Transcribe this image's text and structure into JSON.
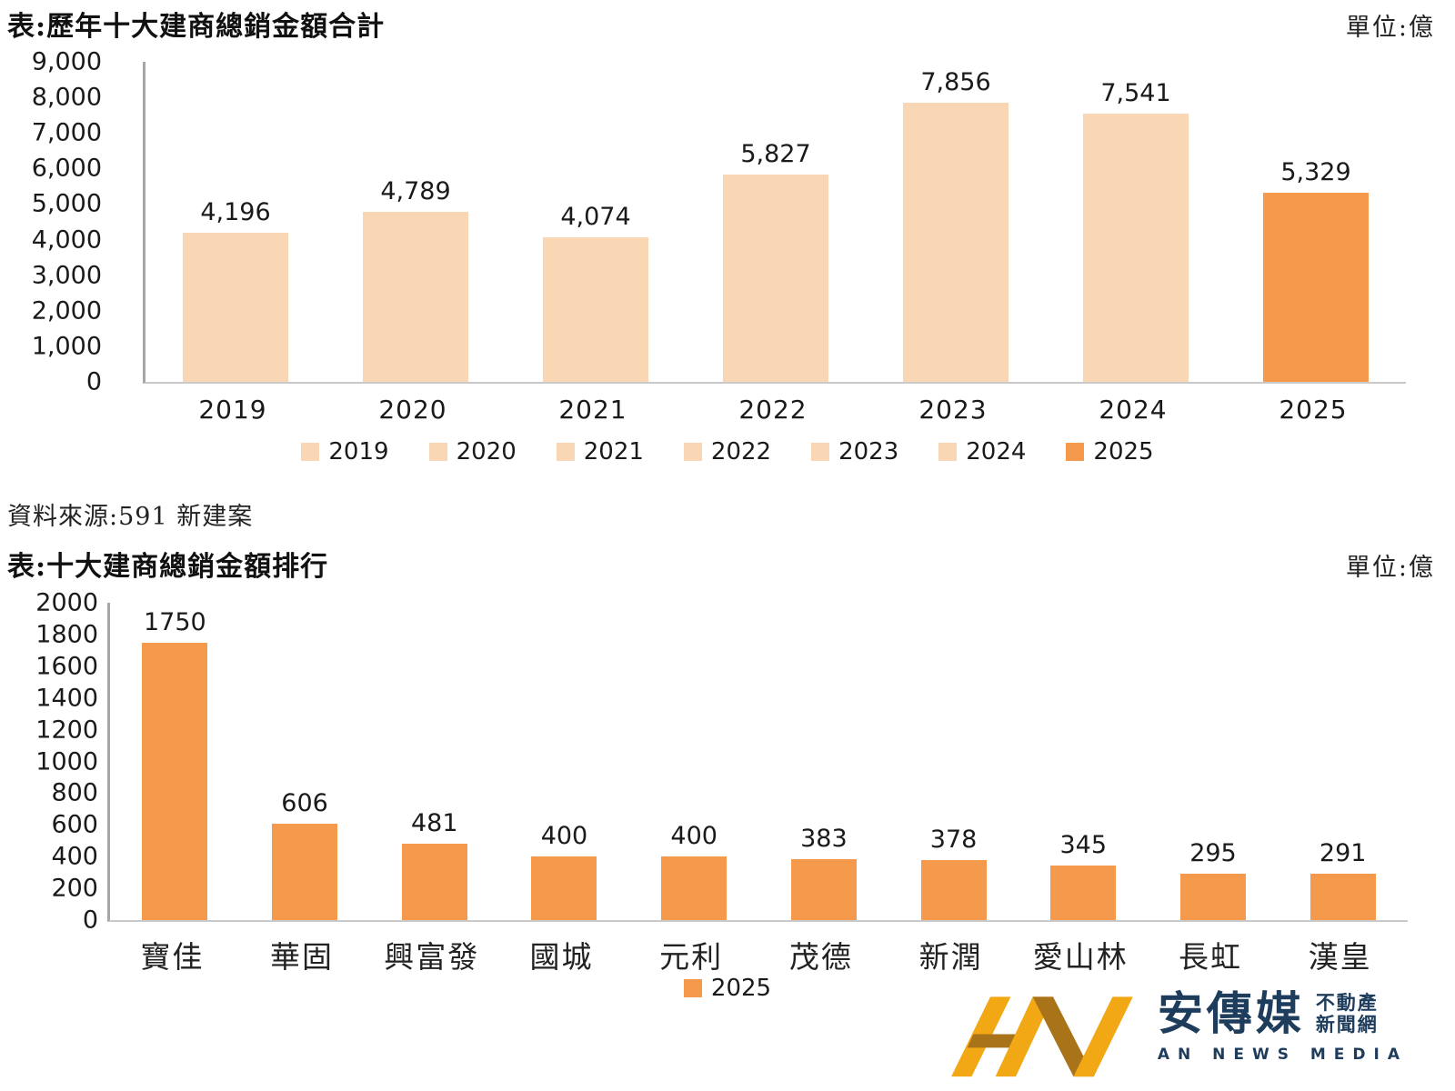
{
  "page": {
    "background": "#ffffff"
  },
  "source_note": "資料來源:591 新建案",
  "colors": {
    "bar_light": "#F9D6B4",
    "bar_orange": "#F5994D",
    "axis_line": "#A6A6A6",
    "baseline": "#C9C9C9",
    "text": "#1A1A1A"
  },
  "chart_data": [
    {
      "type": "bar",
      "title": "表:歷年十大建商總銷金額合計",
      "unit_label": "單位:億",
      "categories": [
        "2019",
        "2020",
        "2021",
        "2022",
        "2023",
        "2024",
        "2025"
      ],
      "values": [
        4196,
        4789,
        4074,
        5827,
        7856,
        7541,
        5329
      ],
      "value_labels": [
        "4,196",
        "4,789",
        "4,074",
        "5,827",
        "7,856",
        "7,541",
        "5,329"
      ],
      "ylim": [
        0,
        9000
      ],
      "ytick_step": 1000,
      "yticks": [
        "9,000",
        "8,000",
        "7,000",
        "6,000",
        "5,000",
        "4,000",
        "3,000",
        "2,000",
        "1,000",
        "0"
      ],
      "bar_colors": [
        "#F9D6B4",
        "#F9D6B4",
        "#F9D6B4",
        "#F9D6B4",
        "#F9D6B4",
        "#F9D6B4",
        "#F5994D"
      ],
      "grid": false,
      "legend_position": "bottom",
      "legend": [
        {
          "label": "2019",
          "color": "#F9D6B4"
        },
        {
          "label": "2020",
          "color": "#F9D6B4"
        },
        {
          "label": "2021",
          "color": "#F9D6B4"
        },
        {
          "label": "2022",
          "color": "#F9D6B4"
        },
        {
          "label": "2023",
          "color": "#F9D6B4"
        },
        {
          "label": "2024",
          "color": "#F9D6B4"
        },
        {
          "label": "2025",
          "color": "#F5994D"
        }
      ]
    },
    {
      "type": "bar",
      "title": "表:十大建商總銷金額排行",
      "unit_label": "單位:億",
      "categories": [
        "寶佳",
        "華固",
        "興富發",
        "國城",
        "元利",
        "茂德",
        "新潤",
        "愛山林",
        "長虹",
        "漢皇"
      ],
      "values": [
        1750,
        606,
        481,
        400,
        400,
        383,
        378,
        345,
        295,
        291
      ],
      "value_labels": [
        "1750",
        "606",
        "481",
        "400",
        "400",
        "383",
        "378",
        "345",
        "295",
        "291"
      ],
      "ylim": [
        0,
        2000
      ],
      "ytick_step": 200,
      "yticks": [
        "2000",
        "1800",
        "1600",
        "1400",
        "1200",
        "1000",
        "800",
        "600",
        "400",
        "200",
        "0"
      ],
      "bar_colors": [
        "#F5994D",
        "#F5994D",
        "#F5994D",
        "#F5994D",
        "#F5994D",
        "#F5994D",
        "#F5994D",
        "#F5994D",
        "#F5994D",
        "#F5994D"
      ],
      "grid": false,
      "legend_position": "bottom",
      "legend": [
        {
          "label": "2025",
          "color": "#F5994D"
        }
      ]
    }
  ],
  "logo": {
    "name_zh": "安傳媒",
    "tagline_line1": "不動產",
    "tagline_line2": "新聞網",
    "name_en": "AN NEWS MEDIA",
    "gold": "#F2A715",
    "bronze": "#A9731A",
    "amber": "#C8860D",
    "navy": "#1E3D5C"
  }
}
